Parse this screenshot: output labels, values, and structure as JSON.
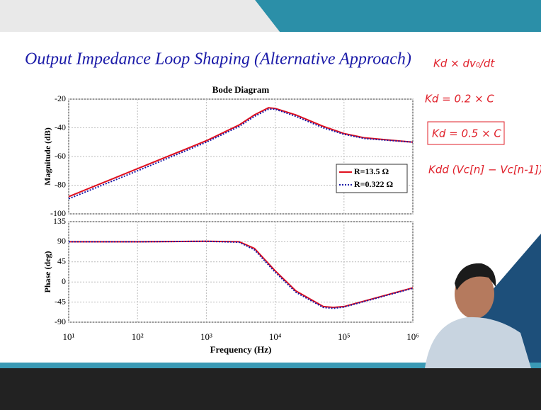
{
  "slide_title": "Output Impedance Loop Shaping (Alternative Approach)",
  "annotations": [
    "Kd × dv₀/dt",
    "Kd = 0.2 × C",
    "Kd = 0.5 × C",
    "Kdd (Vc[n] − Vc[n-1])"
  ],
  "chart_data": [
    {
      "type": "line",
      "title": "Bode Diagram",
      "y_label": "Magnitude (dB)",
      "log_x": true,
      "grid": true,
      "legend": "right",
      "x": [
        10,
        100,
        1000,
        3000,
        5000,
        8000,
        10000,
        20000,
        50000,
        100000,
        200000,
        1000000
      ],
      "xlim": [
        10,
        1000000
      ],
      "xticks": [
        {
          "value": 10,
          "label": "10¹"
        },
        {
          "value": 100,
          "label": "10²"
        },
        {
          "value": 1000,
          "label": "10³"
        },
        {
          "value": 10000,
          "label": "10⁴"
        },
        {
          "value": 100000,
          "label": "10⁵"
        },
        {
          "value": 1000000,
          "label": "10⁶"
        }
      ],
      "ylim": [
        -100,
        -20
      ],
      "yticks": [
        -100,
        -80,
        -60,
        -40,
        -20
      ],
      "series": [
        {
          "name": "R=13.5 Ω",
          "color": "#e0101e",
          "dash": false,
          "values": [
            -88,
            -68.5,
            -49,
            -38,
            -31,
            -26,
            -26.5,
            -31,
            -39,
            -44,
            -47,
            -50
          ]
        },
        {
          "name": "R=0.322 Ω",
          "color": "#1a1aa8",
          "dash": true,
          "values": [
            -89.5,
            -70,
            -50,
            -39,
            -32,
            -27,
            -27,
            -32,
            -40,
            -44.5,
            -47.5,
            -50
          ]
        }
      ]
    },
    {
      "type": "line",
      "y_label": "Phase (deg)",
      "x_label": "Frequency (Hz)",
      "log_x": true,
      "grid": true,
      "x": [
        10,
        100,
        1000,
        3000,
        5000,
        10000,
        20000,
        50000,
        70000,
        100000,
        300000,
        1000000
      ],
      "xlim": [
        10,
        1000000
      ],
      "xticks": [
        {
          "value": 10,
          "label": "10¹"
        },
        {
          "value": 100,
          "label": "10²"
        },
        {
          "value": 1000,
          "label": "10³"
        },
        {
          "value": 10000,
          "label": "10⁴"
        },
        {
          "value": 100000,
          "label": "10⁵"
        },
        {
          "value": 1000000,
          "label": "10⁶"
        }
      ],
      "ylim": [
        -90,
        135
      ],
      "yticks": [
        -90,
        -45,
        0,
        45,
        90,
        135
      ],
      "series": [
        {
          "name": "R=13.5 Ω",
          "color": "#e0101e",
          "dash": false,
          "values": [
            90,
            90,
            91,
            90,
            75,
            25,
            -20,
            -55,
            -57,
            -55,
            -35,
            -13
          ]
        },
        {
          "name": "R=0.322 Ω",
          "color": "#1a1aa8",
          "dash": true,
          "values": [
            90,
            90,
            91,
            89,
            72,
            22,
            -23,
            -57,
            -59,
            -56,
            -36,
            -14
          ]
        }
      ]
    }
  ]
}
